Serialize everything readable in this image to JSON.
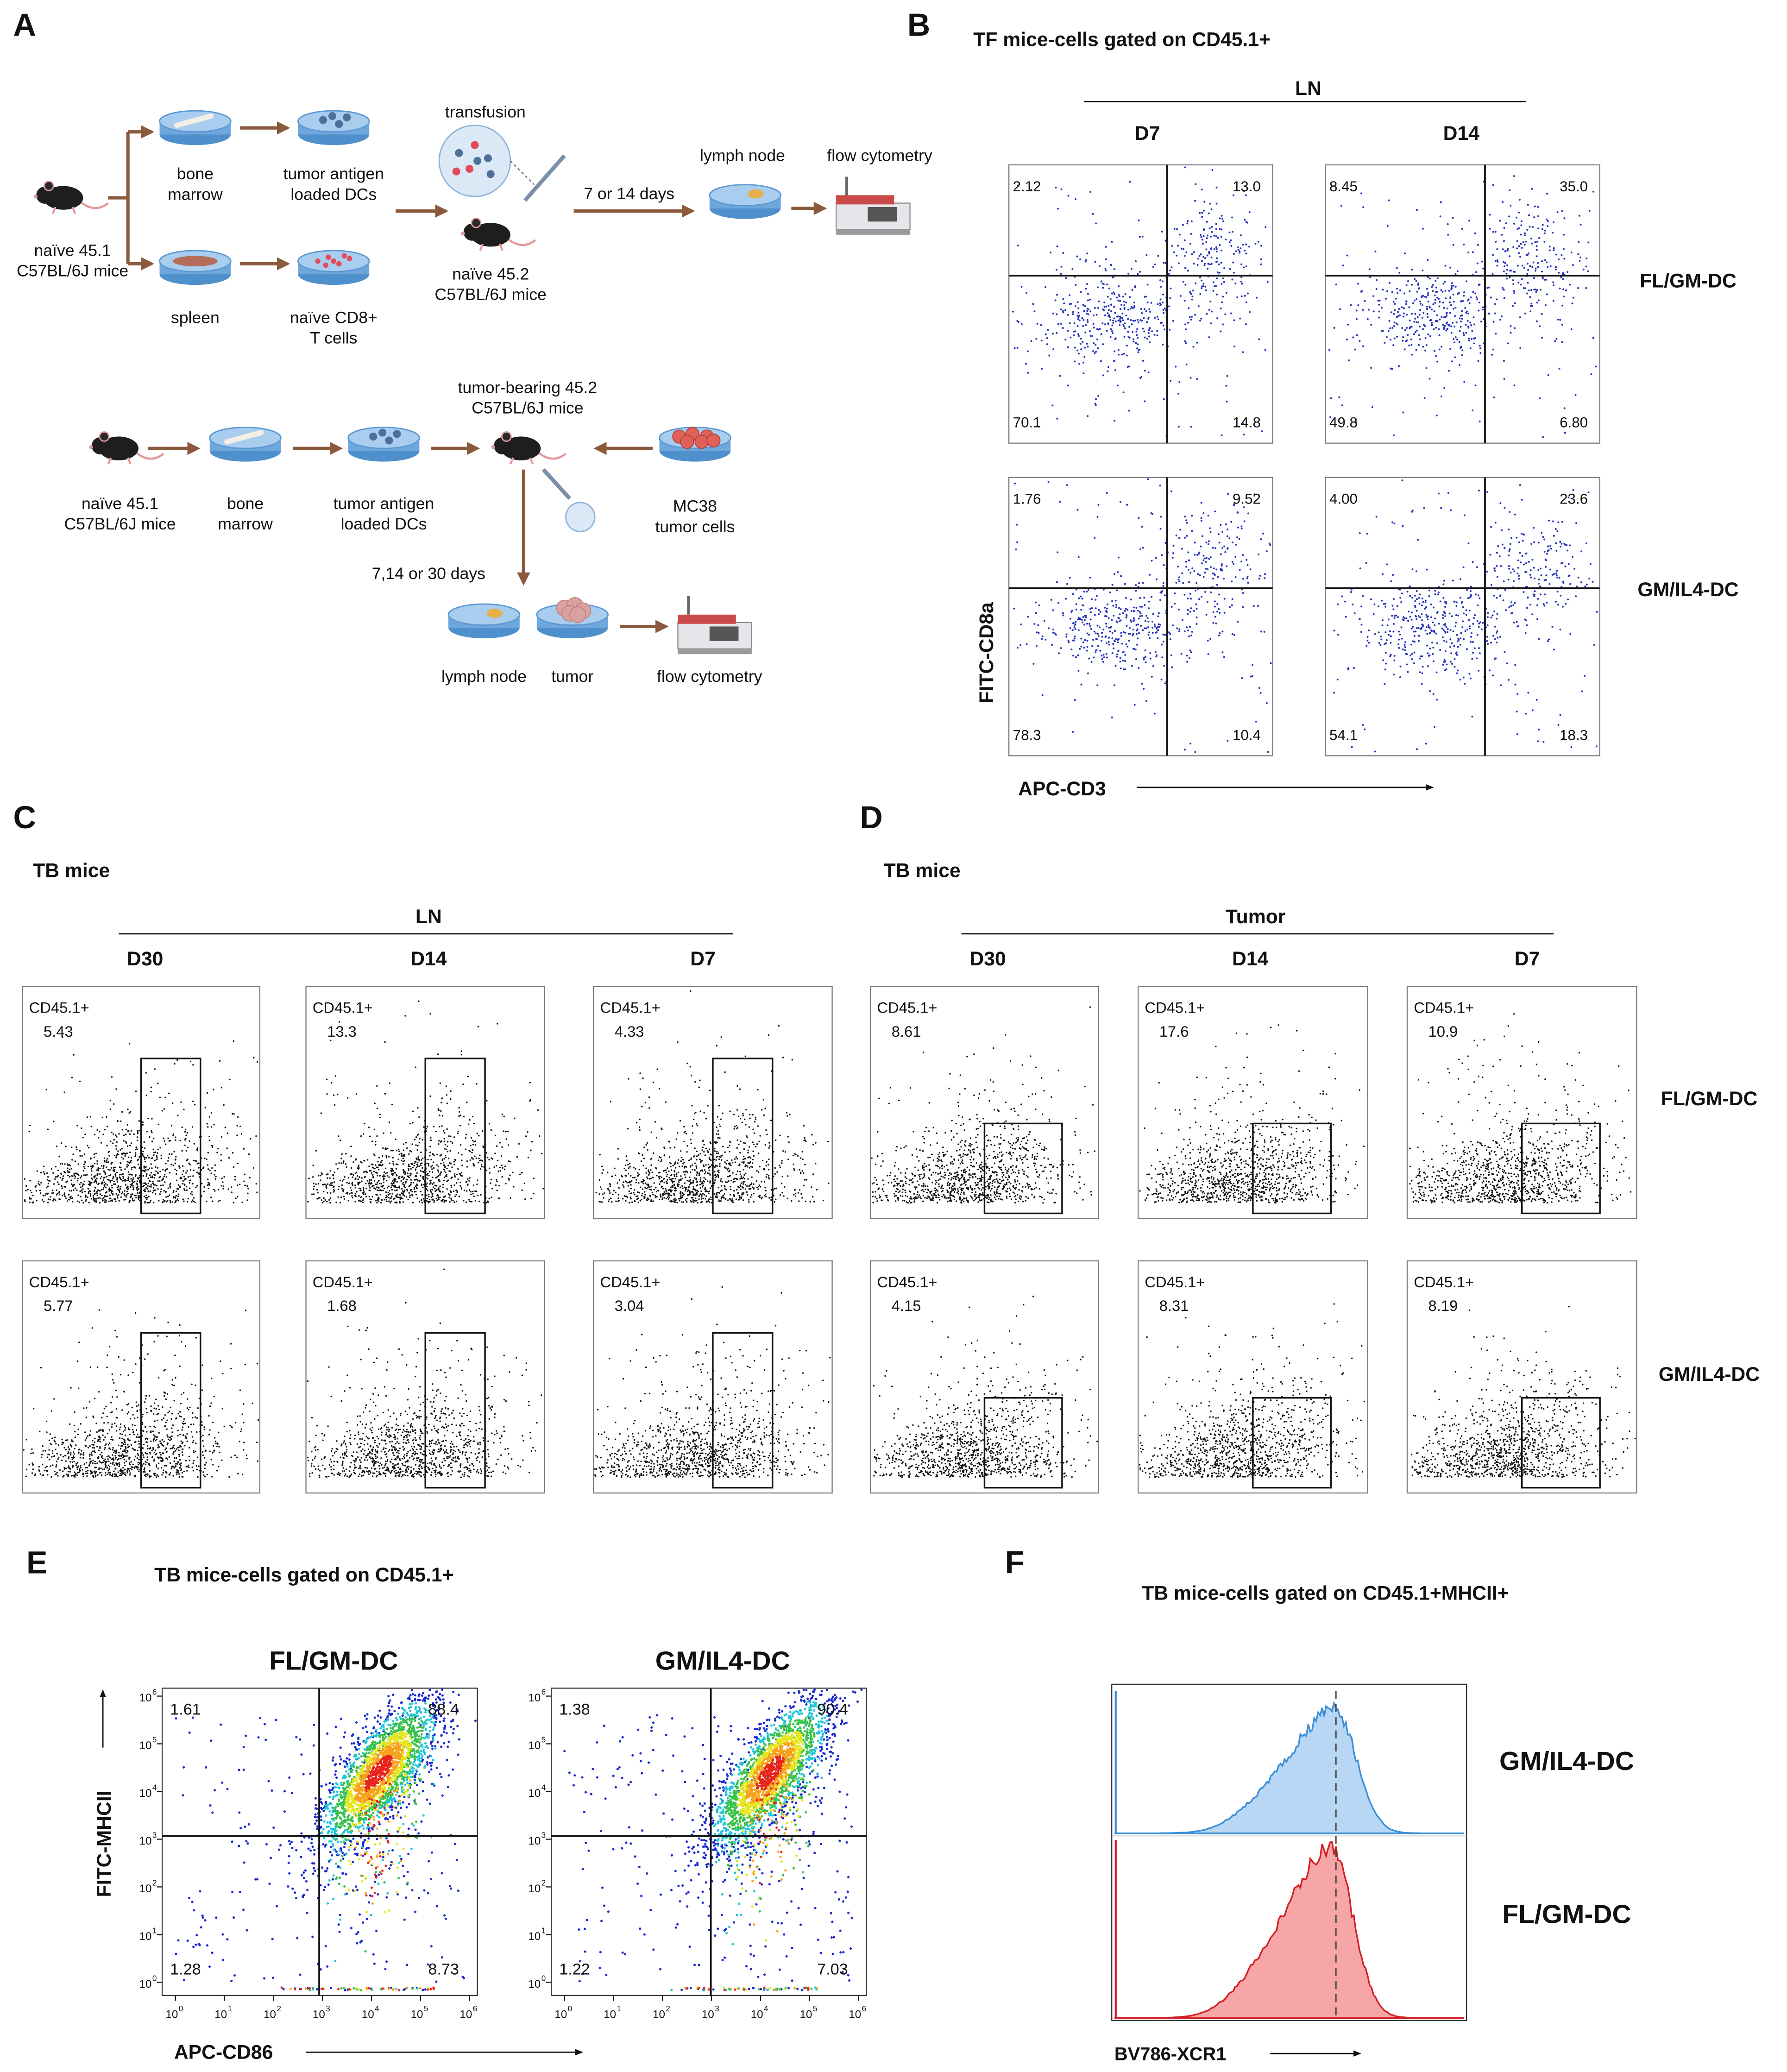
{
  "panel_a": {
    "label": "A",
    "top": {
      "donor": [
        "naïve 45.1",
        "C57BL/6J mice"
      ],
      "bone": [
        "bone",
        "marrow"
      ],
      "dcs": [
        "tumor antigen",
        "loaded DCs"
      ],
      "spleen": [
        "spleen"
      ],
      "tcells": [
        "naïve CD8+",
        "T cells"
      ],
      "transfusion": [
        "transfusion"
      ],
      "recipient": [
        "naïve 45.2",
        "C57BL/6J mice"
      ],
      "days": [
        "7 or 14 days"
      ],
      "node": [
        "lymph node"
      ],
      "flow": [
        "flow cytometry"
      ]
    },
    "bottom": {
      "recipient": [
        "tumor-bearing 45.2",
        "C57BL/6J mice"
      ],
      "donor": [
        "naïve 45.1",
        "C57BL/6J mice"
      ],
      "bone": [
        "bone",
        "marrow"
      ],
      "dcs": [
        "tumor antigen",
        "loaded DCs"
      ],
      "tumor_cells": [
        "MC38",
        "tumor cells"
      ],
      "days": [
        "7,14 or 30 days"
      ],
      "node": [
        "lymph node"
      ],
      "tumor": [
        "tumor"
      ],
      "flow": [
        "flow cytometry"
      ]
    }
  },
  "panel_b": {
    "label": "B",
    "title": "TF mice-cells gated on CD45.1+",
    "group": "LN",
    "columns": [
      "D7",
      "D14"
    ],
    "rows": [
      "FL/GM-DC",
      "GM/IL4-DC"
    ],
    "y_label": "FITC-CD8a",
    "x_label": "APC-CD3",
    "plots": [
      [
        [
          "2.12",
          "13.0",
          "70.1",
          "14.8"
        ],
        [
          "8.45",
          "35.0",
          "49.8",
          "6.80"
        ]
      ],
      [
        [
          "1.76",
          "9.52",
          "78.3",
          "10.4"
        ],
        [
          "4.00",
          "23.6",
          "54.1",
          "18.3"
        ]
      ]
    ]
  },
  "panel_c": {
    "label": "C",
    "title": "TB mice",
    "group": "LN",
    "columns": [
      "D30",
      "D14",
      "D7"
    ],
    "gate_label": "CD45.1+",
    "plots": [
      [
        "5.43",
        "13.3",
        "4.33"
      ],
      [
        "5.77",
        "1.68",
        "3.04"
      ]
    ]
  },
  "panel_d": {
    "label": "D",
    "title": "TB mice",
    "group": "Tumor",
    "columns": [
      "D30",
      "D14",
      "D7"
    ],
    "rows": [
      "FL/GM-DC",
      "GM/IL4-DC"
    ],
    "gate_label": "CD45.1+",
    "plots": [
      [
        "8.61",
        "17.6",
        "10.9"
      ],
      [
        "4.15",
        "8.31",
        "8.19"
      ]
    ]
  },
  "panel_e": {
    "label": "E",
    "title": "TB mice-cells gated on CD45.1+",
    "columns": [
      "FL/GM-DC",
      "GM/IL4-DC"
    ],
    "y_label": "FITC-MHCII",
    "x_label": "APC-CD86",
    "tick_base": "10",
    "tick_exponents": [
      "0",
      "1",
      "2",
      "3",
      "4",
      "5",
      "6"
    ],
    "plots": [
      [
        "1.61",
        "88.4",
        "1.28",
        "8.73"
      ],
      [
        "1.38",
        "90.4",
        "1.22",
        "7.03"
      ]
    ]
  },
  "panel_f": {
    "label": "F",
    "title": "TB mice-cells gated on CD45.1+MHCII+",
    "rows": [
      "GM/IL4-DC",
      "FL/GM-DC"
    ],
    "x_label": "BV786-XCR1"
  }
}
